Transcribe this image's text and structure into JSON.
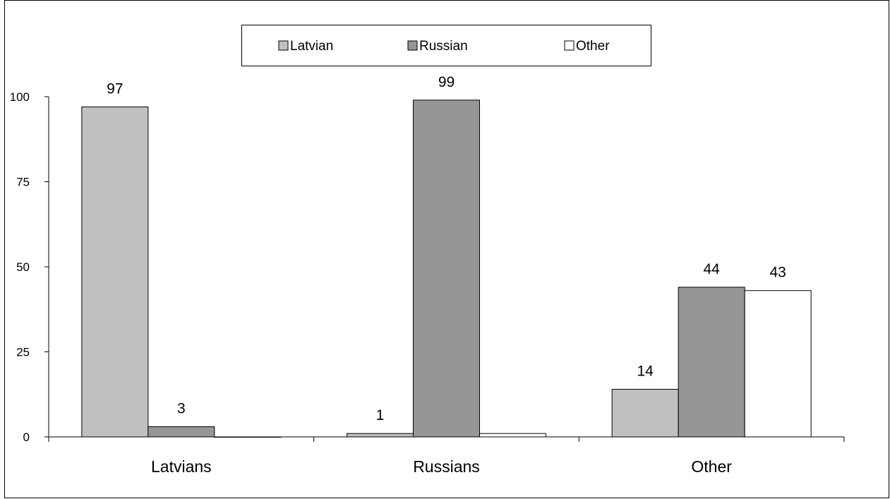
{
  "chart_data": {
    "type": "bar",
    "title": "",
    "xlabel": "",
    "ylabel": "",
    "categories": [
      "Latvians",
      "Russians",
      "Other"
    ],
    "series": [
      {
        "name": "Latvian",
        "values": [
          97,
          1,
          14
        ],
        "color": "#c0c0c0"
      },
      {
        "name": "Russian",
        "values": [
          3,
          99,
          44
        ],
        "color": "#969696"
      },
      {
        "name": "Other",
        "values": [
          0,
          1,
          43
        ],
        "color": "#ffffff"
      }
    ],
    "data_labels": [
      [
        "97",
        "3",
        ""
      ],
      [
        "1",
        "99",
        ""
      ],
      [
        "14",
        "44",
        "43"
      ]
    ],
    "ylim": [
      0,
      100
    ],
    "yticks": [
      0,
      25,
      50,
      75,
      100
    ],
    "grid": false,
    "legend_position": "top-center"
  }
}
